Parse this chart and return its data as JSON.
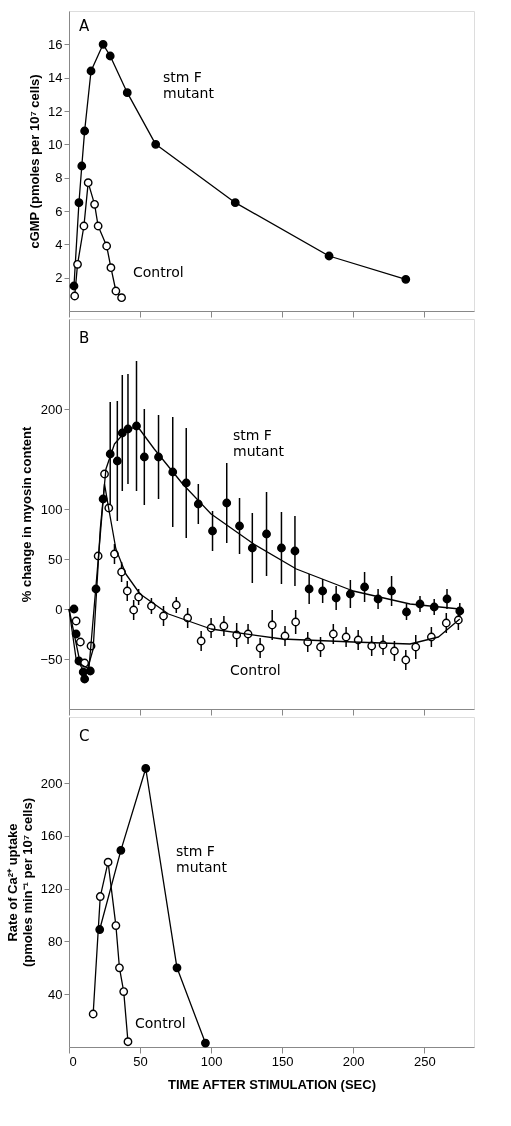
{
  "chart_data": [
    {
      "type": "line",
      "ylabel": "cGMP (pmoles per 10⁷ cells)",
      "xlim": [
        0,
        285
      ],
      "xticks": [
        0,
        50,
        100,
        150,
        200,
        250
      ],
      "ylim": [
        0,
        18
      ],
      "yticks": [
        2,
        4,
        6,
        8,
        10,
        12,
        14,
        16
      ],
      "tick_labels": "y",
      "grid": false,
      "marker": "circle",
      "line_style": "solid",
      "annotations": [
        "A",
        "stm F\nmutant",
        "Control"
      ],
      "series": [
        {
          "color": "#000000",
          "x": [
            3.5,
            7,
            9,
            11,
            15.5,
            24,
            29,
            41,
            61,
            117,
            183,
            237
          ],
          "values": [
            1.5,
            6.5,
            8.7,
            10.8,
            14.4,
            16,
            15.3,
            13.1,
            10.0,
            6.5,
            3.3,
            1.9
          ]
        },
        {
          "color": "#000000",
          "x": [
            4,
            6,
            10.5,
            13.5,
            18,
            20.5,
            26.5,
            29.5,
            33,
            37
          ],
          "values": [
            0.9,
            2.8,
            5.1,
            7.7,
            6.4,
            5.1,
            3.9,
            2.6,
            1.2,
            0.8
          ]
        }
      ]
    },
    {
      "type": "scatter",
      "ylabel": "% change in myosin content",
      "xlim": [
        0,
        285
      ],
      "xticks": [
        0,
        50,
        100,
        150,
        200,
        250
      ],
      "ylim": [
        -100,
        290
      ],
      "yticks": [
        -50,
        0,
        50,
        100,
        200
      ],
      "tick_labels": "y",
      "grid": false,
      "marker": "circle",
      "annotations": [
        "B",
        "stm F\nmutant",
        "Control"
      ],
      "series": [
        {
          "color": "#000000",
          "x": [
            3.5,
            5,
            7,
            10,
            11,
            15,
            19,
            24,
            29,
            34,
            37.5,
            41.5,
            47.5,
            53,
            63,
            73,
            82.5,
            91,
            101,
            111,
            120,
            129,
            139,
            149.5,
            159,
            169,
            178.5,
            188,
            198,
            208,
            217.5,
            227,
            237.5,
            247,
            257,
            266,
            275
          ],
          "values": [
            0,
            -25,
            -52,
            -63,
            -70,
            -62,
            20,
            110,
            155,
            148,
            176,
            180,
            183,
            152,
            152,
            137,
            126,
            105,
            78,
            106,
            83,
            61,
            75,
            61,
            58,
            20,
            18,
            11,
            15,
            22,
            10,
            18,
            -3,
            5,
            2,
            10,
            -2
          ],
          "errors": [
            null,
            null,
            null,
            null,
            null,
            null,
            null,
            null,
            52,
            60,
            58,
            55,
            65,
            48,
            42,
            55,
            55,
            20,
            20,
            40,
            28,
            35,
            42,
            36,
            35,
            15,
            12,
            12,
            14,
            15,
            10,
            15,
            8,
            8,
            8,
            10,
            8
          ]
        },
        {
          "color": "#000000",
          "x": [
            5,
            8,
            11,
            15.5,
            20.5,
            25,
            28,
            32,
            37,
            41,
            45.5,
            49,
            58,
            66.5,
            75.5,
            83.5,
            93,
            100,
            109,
            118,
            126,
            134.5,
            143,
            152,
            159.5,
            168,
            177,
            186,
            195,
            203.5,
            213,
            221,
            229,
            237,
            244,
            255,
            265.5,
            274
          ],
          "values": [
            -12,
            -33,
            -54,
            -37,
            53,
            135,
            101,
            55,
            37,
            18,
            -1,
            12,
            3,
            -7,
            4,
            -9,
            -32,
            -19,
            -17,
            -26,
            -25,
            -39,
            -16,
            -27,
            -13,
            -33,
            -38,
            -25,
            -28,
            -31,
            -37,
            -36,
            -42,
            -51,
            -38,
            -28,
            -14,
            -11
          ],
          "errors": [
            null,
            null,
            null,
            null,
            null,
            null,
            null,
            10,
            10,
            10,
            10,
            8,
            8,
            10,
            8,
            10,
            10,
            10,
            10,
            12,
            10,
            10,
            15,
            10,
            12,
            10,
            10,
            10,
            10,
            10,
            10,
            10,
            10,
            10,
            12,
            10,
            10,
            10
          ]
        },
        {
          "type": "line",
          "color": "#000000",
          "marker": "none",
          "x": [
            0,
            5,
            12,
            17,
            22,
            26,
            32,
            40,
            48,
            60,
            80,
            100,
            130,
            160,
            200,
            240,
            275
          ],
          "values": [
            0,
            -50,
            -65,
            -40,
            80,
            140,
            165,
            178,
            183,
            160,
            125,
            95,
            65,
            40,
            18,
            5,
            0
          ]
        },
        {
          "type": "line",
          "color": "#000000",
          "marker": "none",
          "x": [
            0,
            8,
            14,
            20,
            25,
            28,
            33,
            40,
            50,
            70,
            100,
            150,
            200,
            240,
            260,
            275
          ],
          "values": [
            0,
            -55,
            -60,
            40,
            125,
            100,
            60,
            35,
            15,
            -5,
            -20,
            -30,
            -33,
            -35,
            -28,
            -10
          ]
        }
      ]
    },
    {
      "type": "line",
      "ylabel": "Rate of Ca²⁺ uptake\n(pmoles min⁻¹ per 10⁷ cells)",
      "xlabel": "TIME AFTER STIMULATION (SEC)",
      "xlim": [
        0,
        285
      ],
      "xticks": [
        0,
        50,
        100,
        150,
        200,
        250
      ],
      "ylim": [
        0,
        250
      ],
      "yticks": [
        40,
        80,
        120,
        160,
        200
      ],
      "grid": false,
      "marker": "circle",
      "line_style": "solid",
      "annotations": [
        "C",
        "stm F\nmutant",
        "Control"
      ],
      "series": [
        {
          "color": "#000000",
          "x": [
            21.6,
            36.5,
            54,
            76,
            96
          ],
          "values": [
            89,
            149,
            211,
            60,
            3
          ]
        },
        {
          "color": "#000000",
          "x": [
            17,
            22,
            27.5,
            33,
            35.5,
            38.5,
            41.5
          ],
          "values": [
            25,
            114,
            140,
            92,
            60,
            42,
            4
          ]
        }
      ]
    }
  ]
}
